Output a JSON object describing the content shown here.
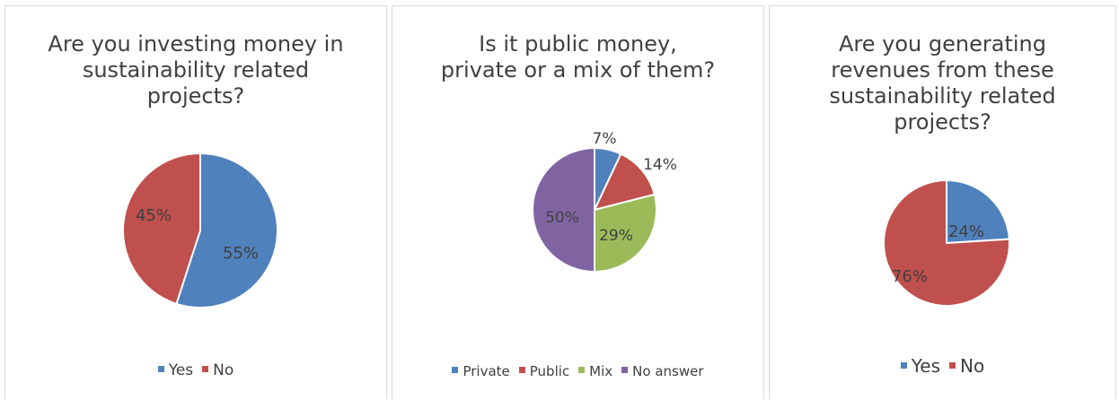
{
  "chart_data": [
    {
      "type": "pie",
      "title_lines": [
        "Are you investing money in",
        "sustainability related",
        "projects?"
      ],
      "categories": [
        "Yes",
        "No"
      ],
      "values": [
        55,
        45
      ],
      "labels": [
        "55%",
        "45%"
      ],
      "colors": [
        "#4f81bd",
        "#c0504d"
      ],
      "legend_position": "bottom"
    },
    {
      "type": "pie",
      "title_lines": [
        "Is it public money,",
        "private or a mix of them?"
      ],
      "categories": [
        "Private",
        "Public",
        "Mix",
        "No answer"
      ],
      "values": [
        7,
        14,
        29,
        50
      ],
      "labels": [
        "7%",
        "14%",
        "29%",
        "50%"
      ],
      "colors": [
        "#4f81bd",
        "#c0504d",
        "#9bbb59",
        "#8064a2"
      ],
      "legend_position": "bottom"
    },
    {
      "type": "pie",
      "title_lines": [
        "Are you generating",
        "revenues from these",
        "sustainability related",
        "projects?"
      ],
      "categories": [
        "Yes",
        "No"
      ],
      "values": [
        24,
        76
      ],
      "labels": [
        "24%",
        "76%"
      ],
      "colors": [
        "#4f81bd",
        "#c0504d"
      ],
      "legend_position": "bottom"
    }
  ]
}
